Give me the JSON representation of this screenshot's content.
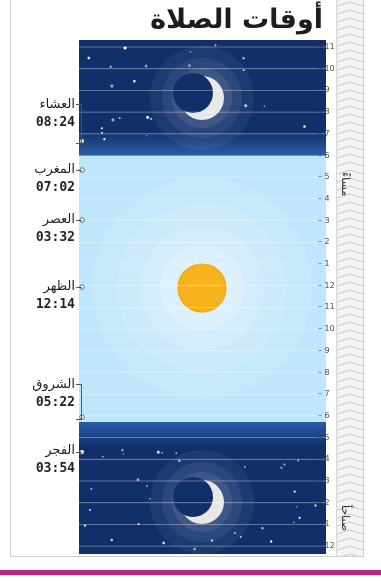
{
  "title": "أوقات الصلاة",
  "side_labels": {
    "evening": "مساءً",
    "morning": "صباحاً"
  },
  "hour_ticks": [
    "11",
    "10",
    "9",
    "8",
    "7",
    "6",
    "5",
    "4",
    "3",
    "2",
    "1",
    "12",
    "11",
    "10",
    "9",
    "8",
    "7",
    "6",
    "5",
    "4",
    "3",
    "2",
    "1",
    "12"
  ],
  "prayers": [
    {
      "name": "العشاء",
      "time": "08:24"
    },
    {
      "name": "المغرب",
      "time": "07:02"
    },
    {
      "name": "العصر",
      "time": "03:32"
    },
    {
      "name": "الظهر",
      "time": "12:14"
    },
    {
      "name": "الشروق",
      "time": "05:22"
    },
    {
      "name": "الفجر",
      "time": "03:54"
    }
  ],
  "colors": {
    "night": "#11306a",
    "day": "#bfe6fb",
    "sun": "#f7b21c",
    "moon": "#e8e8e8",
    "accent": "#c22283"
  }
}
